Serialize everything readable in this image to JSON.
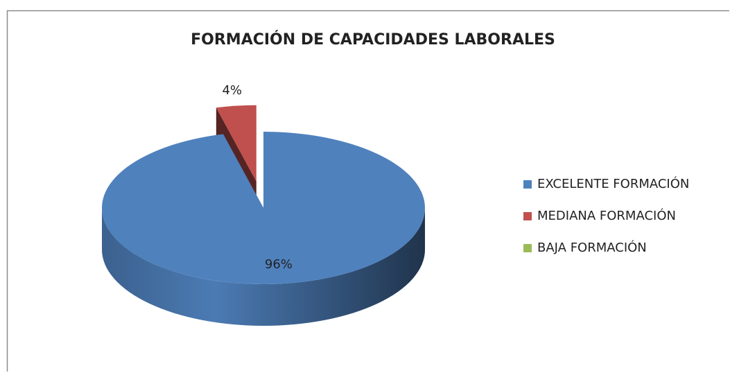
{
  "chart_data": {
    "type": "pie",
    "title": "FORMACIÓN DE CAPACIDADES LABORALES",
    "categories": [
      "EXCELENTE FORMACIÓN",
      "MEDIANA FORMACIÓN",
      "BAJA FORMACIÓN"
    ],
    "values": [
      96,
      4,
      0
    ],
    "value_labels": [
      "96%",
      "4%",
      null
    ],
    "colors": [
      "#4f81bd",
      "#c0504d",
      "#9bbb59"
    ],
    "explode": [
      0,
      0.35,
      0
    ],
    "three_d": true,
    "legend": "right"
  }
}
